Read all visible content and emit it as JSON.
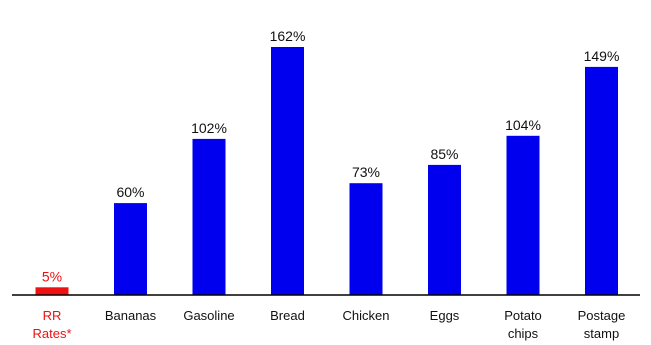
{
  "chart_data": {
    "type": "bar",
    "categories": [
      [
        "RR",
        "Rates*"
      ],
      [
        "Bananas"
      ],
      [
        "Gasoline"
      ],
      [
        "Bread"
      ],
      [
        "Chicken"
      ],
      [
        "Eggs"
      ],
      [
        "Potato",
        "chips"
      ],
      [
        "Postage",
        "stamp"
      ]
    ],
    "values": [
      5,
      60,
      102,
      162,
      73,
      85,
      104,
      149
    ],
    "value_labels": [
      "5%",
      "60%",
      "102%",
      "162%",
      "73%",
      "85%",
      "104%",
      "149%"
    ],
    "bar_colors": [
      "#ee1111",
      "#0000ee",
      "#0000ee",
      "#0000ee",
      "#0000ee",
      "#0000ee",
      "#0000ee",
      "#0000ee"
    ],
    "label_colors": [
      "#ee1111",
      "#111111",
      "#111111",
      "#111111",
      "#111111",
      "#111111",
      "#111111",
      "#111111"
    ],
    "ylim": [
      0,
      162
    ],
    "grid": false,
    "legend": "none"
  }
}
